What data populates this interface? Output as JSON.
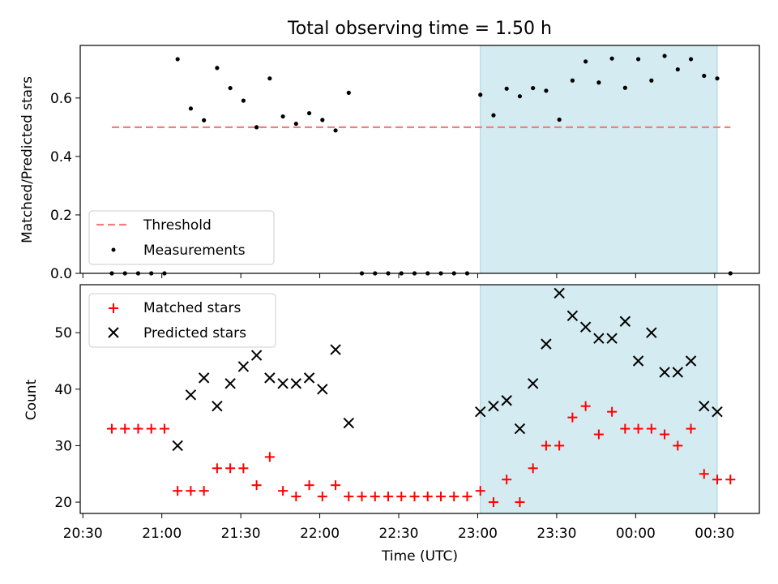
{
  "chart_data": {
    "type": "scatter",
    "title": "Total observing time = 1.50 h",
    "xlabel": "Time (UTC)",
    "x_ticks": [
      "20:30",
      "21:00",
      "21:30",
      "22:00",
      "22:30",
      "23:00",
      "23:30",
      "00:00",
      "00:30"
    ],
    "xlim": [
      "20:29",
      "00:47"
    ],
    "highlight_span": {
      "start": "23:01",
      "end": "00:31",
      "color": "#d4ebf1"
    },
    "times": [
      "20:41",
      "20:46",
      "20:51",
      "20:56",
      "21:01",
      "21:06",
      "21:11",
      "21:16",
      "21:21",
      "21:26",
      "21:31",
      "21:36",
      "21:41",
      "21:46",
      "21:51",
      "21:56",
      "22:01",
      "22:06",
      "22:11",
      "22:16",
      "22:21",
      "22:26",
      "22:31",
      "22:36",
      "22:41",
      "22:46",
      "22:51",
      "22:56",
      "23:01",
      "23:06",
      "23:11",
      "23:16",
      "23:21",
      "23:26",
      "23:31",
      "23:36",
      "23:41",
      "23:46",
      "23:51",
      "23:56",
      "00:01",
      "00:06",
      "00:11",
      "00:16",
      "00:21",
      "00:26",
      "00:31",
      "00:36"
    ],
    "panels": [
      {
        "ylabel": "Matched/Predicted stars",
        "ylim": [
          0,
          0.78
        ],
        "yticks": [
          "0.0",
          "0.2",
          "0.4",
          "0.6"
        ],
        "legend": {
          "position": "lower-left"
        },
        "series": [
          {
            "name": "Threshold",
            "kind": "line",
            "color": "#f08080",
            "dash": "dashed",
            "x": [
              "20:41",
              "00:36"
            ],
            "values": [
              0.5,
              0.5
            ]
          },
          {
            "name": "Measurements",
            "kind": "dot",
            "color": "#000000",
            "values": [
              0,
              0,
              0,
              0,
              0,
              0.733,
              0.564,
              0.524,
              0.703,
              0.634,
              0.591,
              0.5,
              0.667,
              0.537,
              0.512,
              0.548,
              0.525,
              0.489,
              0.618,
              0,
              0,
              0,
              0,
              0,
              0,
              0,
              0,
              0,
              0.611,
              0.541,
              0.632,
              0.606,
              0.634,
              0.625,
              0.526,
              0.66,
              0.725,
              0.653,
              0.735,
              0.635,
              0.733,
              0.66,
              0.744,
              0.698,
              0.733,
              0.676,
              0.667,
              0
            ]
          }
        ]
      },
      {
        "ylabel": "Count",
        "ylim": [
          18,
          58.5
        ],
        "yticks": [
          "20",
          "30",
          "40",
          "50"
        ],
        "legend": {
          "position": "top-left"
        },
        "series": [
          {
            "name": "Matched stars",
            "kind": "plus",
            "color": "#ff0000",
            "values": [
              33,
              33,
              33,
              33,
              33,
              22,
              22,
              22,
              26,
              26,
              26,
              23,
              28,
              22,
              21,
              23,
              21,
              23,
              21,
              21,
              21,
              21,
              21,
              21,
              21,
              21,
              21,
              21,
              22,
              20,
              24,
              20,
              26,
              30,
              30,
              35,
              37,
              32,
              36,
              33,
              33,
              33,
              32,
              30,
              33,
              25,
              24,
              24
            ]
          },
          {
            "name": "Predicted stars",
            "kind": "x",
            "color": "#000000",
            "values": [
              null,
              null,
              null,
              null,
              null,
              30,
              39,
              42,
              37,
              41,
              44,
              46,
              42,
              41,
              41,
              42,
              40,
              47,
              34,
              null,
              null,
              null,
              null,
              null,
              null,
              null,
              null,
              null,
              36,
              37,
              38,
              33,
              41,
              48,
              57,
              53,
              51,
              49,
              49,
              52,
              45,
              50,
              43,
              43,
              45,
              37,
              36,
              null
            ]
          }
        ]
      }
    ]
  }
}
